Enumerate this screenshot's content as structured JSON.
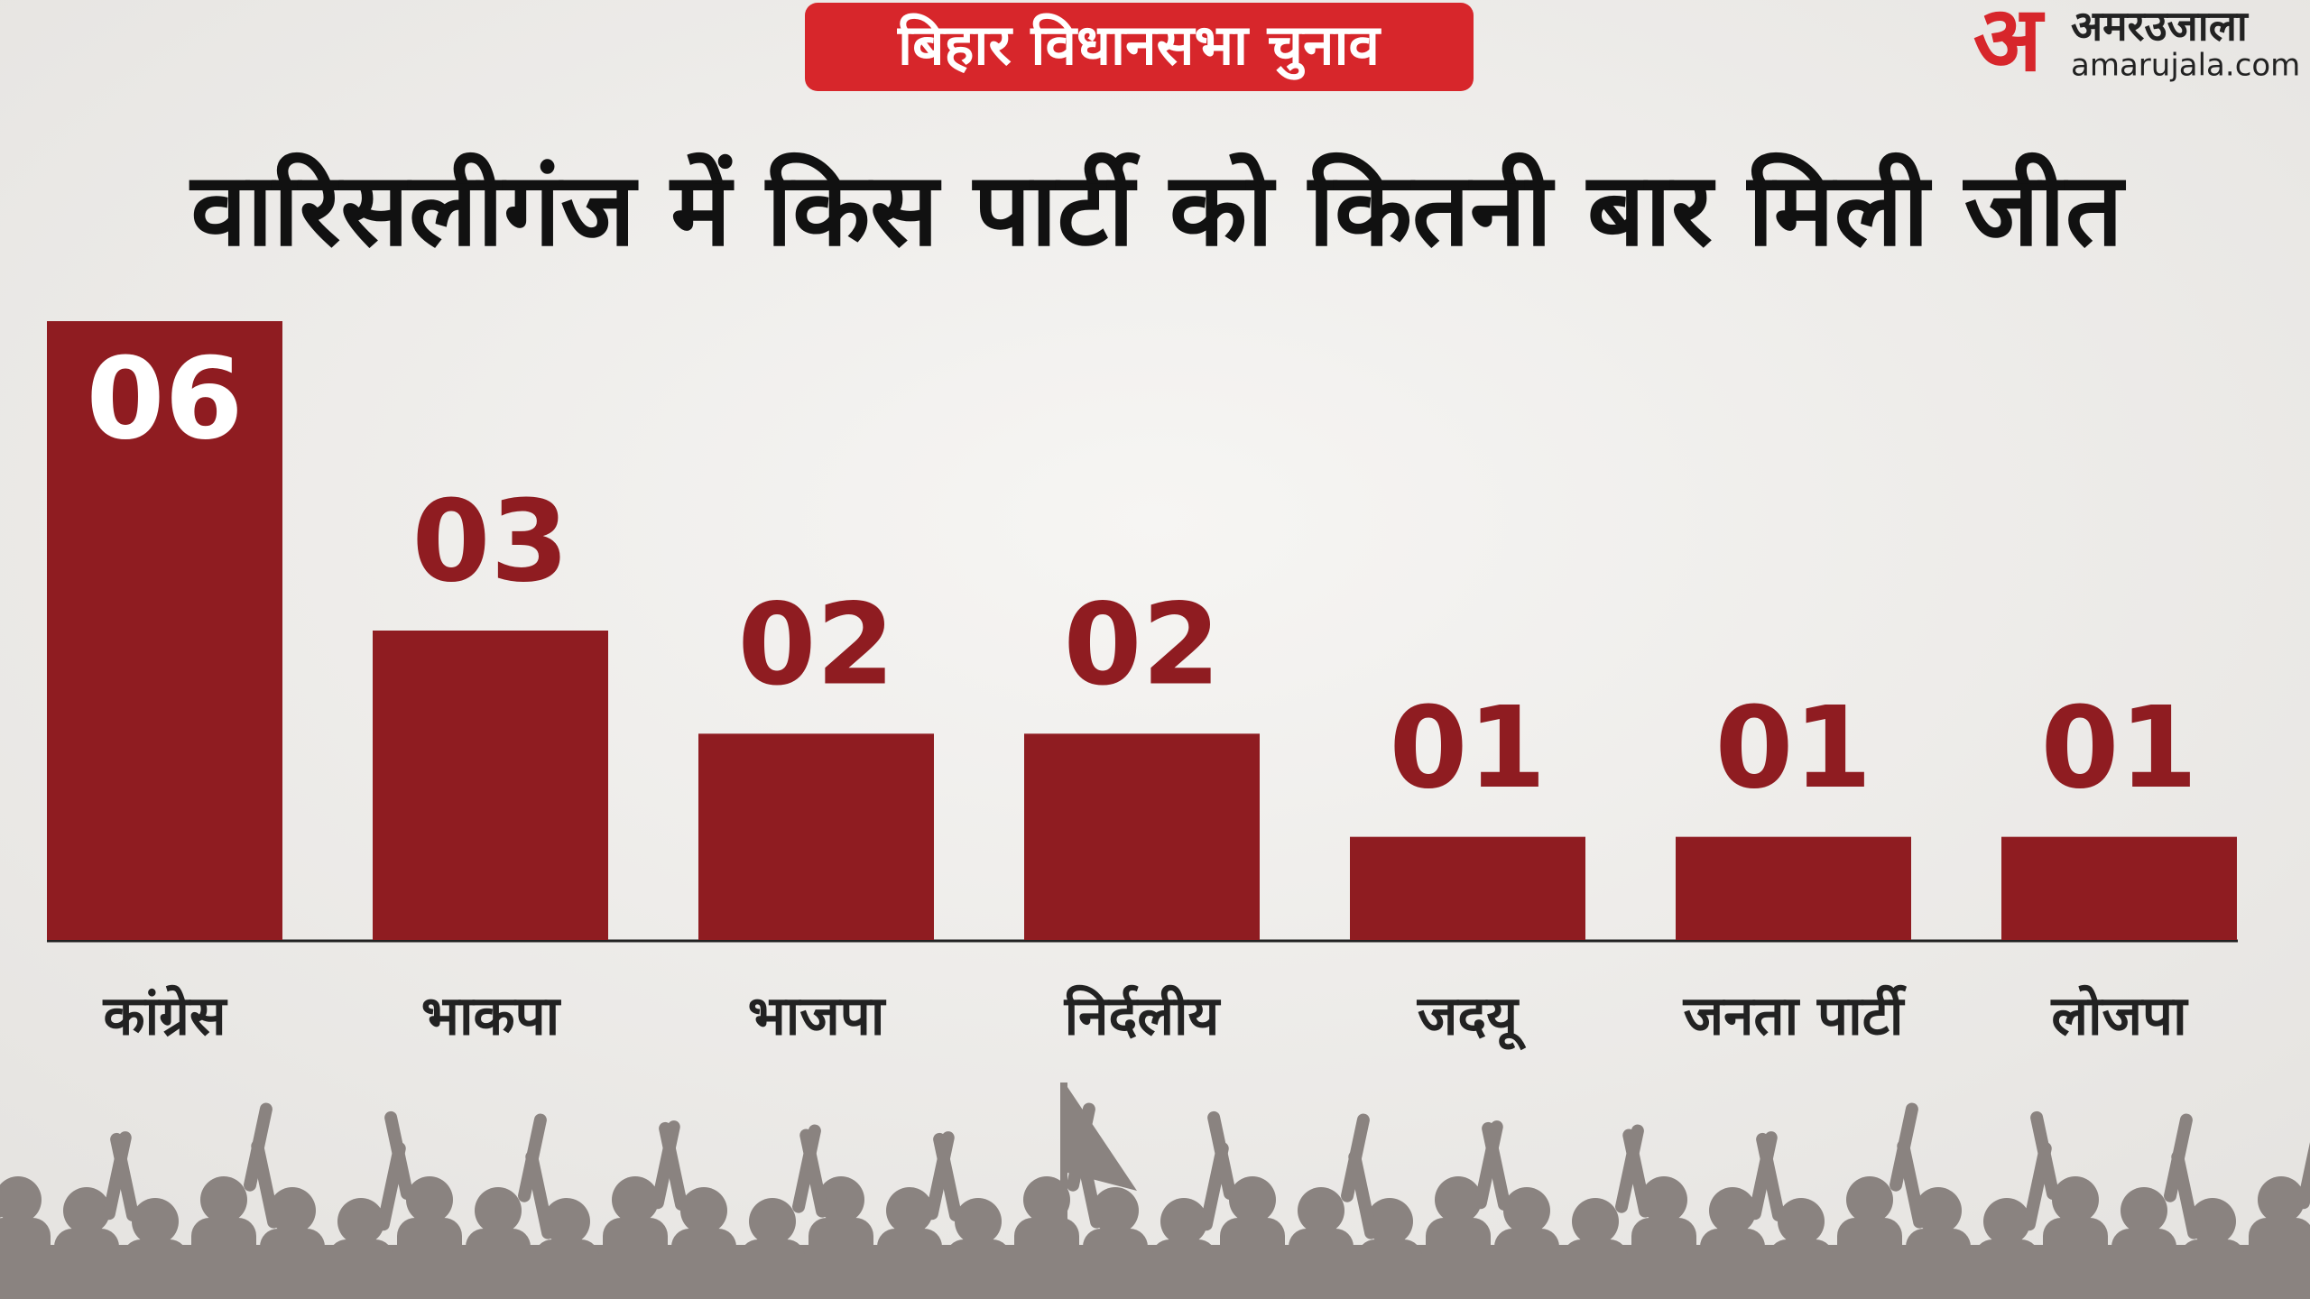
{
  "chart_data": {
    "type": "bar",
    "tag": "बिहार विधानसभा चुनाव",
    "title": "वारिसलीगंज  में किस पार्टी को कितनी बार मिली जीत",
    "logo_mark": "अ",
    "logo_name": "अमरउजाला",
    "logo_site": "amarujala.com",
    "categories": [
      "कांग्रेस",
      "भाकपा",
      "भाजपा",
      "निर्दलीय",
      "जदयू",
      "जनता पार्टी",
      "लोजपा"
    ],
    "values": [
      6,
      3,
      2,
      2,
      1,
      1,
      1
    ],
    "value_labels": [
      "06",
      "03",
      "02",
      "02",
      "01",
      "01",
      "01"
    ],
    "color": "#8f1c21"
  }
}
